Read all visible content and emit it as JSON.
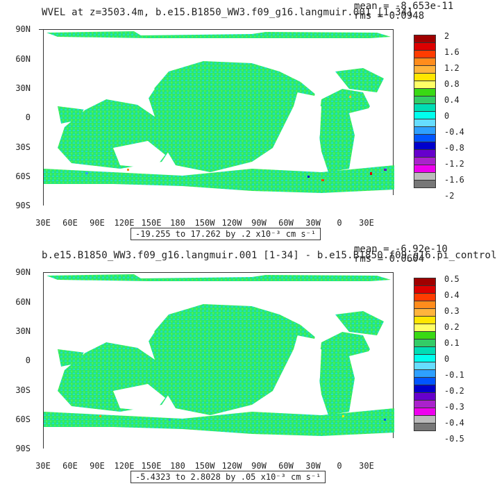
{
  "panels": [
    {
      "title": "WVEL at z=3503.4m, b.e15.B1850_WW3.f09_g16.langmuir.001 [1-34]",
      "mean": "mean = -8.653e-11",
      "rms": "rms = 0.0948",
      "range": "-19.255 to 17.262 by .2 x10⁻³ cm s⁻¹",
      "colorbar_labels": [
        "2",
        "1.6",
        "1.2",
        "0.8",
        "0.4",
        "0",
        "-0.4",
        "-0.8",
        "-1.2",
        "-1.6",
        "-2"
      ]
    },
    {
      "title": "b.e15.B1850_WW3.f09_g16.langmuir.001 [1-34] - b.e15.B1850.f09_g16.pi_control",
      "mean": "mean = -6.92e-10",
      "rms": "rms = 0.0604",
      "range": "-5.4323 to 2.8028 by .05 x10⁻³ cm s⁻¹",
      "colorbar_labels": [
        "0.5",
        "0.4",
        "0.3",
        "0.2",
        "0.1",
        "0",
        "-0.1",
        "-0.2",
        "-0.3",
        "-0.4",
        "-0.5"
      ]
    }
  ],
  "lat_labels": [
    "90N",
    "60N",
    "30N",
    "0",
    "30S",
    "60S",
    "90S"
  ],
  "lon_labels": [
    "30E",
    "60E",
    "90E",
    "120E",
    "150E",
    "180",
    "150W",
    "120W",
    "90W",
    "60W",
    "30W",
    "0",
    "30E"
  ],
  "colorbar_colors": [
    "#a00000",
    "#dd0000",
    "#ff3c00",
    "#ff8c1c",
    "#ffb43c",
    "#ffe600",
    "#ffff66",
    "#39d914",
    "#33cc66",
    "#00ddb4",
    "#00ffee",
    "#66ddff",
    "#2ea0ff",
    "#0055ff",
    "#0000cc",
    "#6600cc",
    "#aa22cc",
    "#ee00ee",
    "#bbbbbb",
    "#777777"
  ],
  "ocean_color": "#2ee86a",
  "ocean_alt_color": "#22ddcc"
}
